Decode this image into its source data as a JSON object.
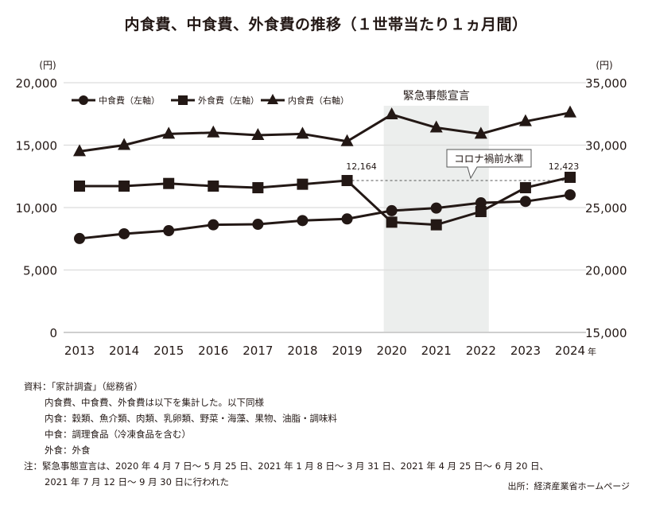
{
  "title": "内食費、中食費、外食費の推移（１世帯当たり１ヵ月間）",
  "chart_data": {
    "type": "line",
    "title": "内食費、中食費、外食費の推移（１世帯当たり１ヵ月間）",
    "x": [
      "2013",
      "2014",
      "2015",
      "2016",
      "2017",
      "2018",
      "2019",
      "2020",
      "2021",
      "2022",
      "2023",
      "2024"
    ],
    "x_suffix": "年",
    "left_axis": {
      "unit": "(円)",
      "ylim": [
        0,
        20000
      ],
      "ticks": [
        "0",
        "5,000",
        "10,000",
        "15,000",
        "20,000"
      ]
    },
    "right_axis": {
      "unit": "(円)",
      "ylim": [
        15000,
        35000
      ],
      "ticks": [
        "15,000",
        "20,000",
        "25,000",
        "30,000",
        "35,000"
      ]
    },
    "grid": true,
    "legend_position": "top-left",
    "series": [
      {
        "name": "中食費（左軸）",
        "marker": "circle",
        "axis": "left",
        "values": [
          7520,
          7900,
          8150,
          8620,
          8660,
          8960,
          9090,
          9750,
          9960,
          10380,
          10490,
          11020
        ]
      },
      {
        "name": "外食費（左軸）",
        "marker": "square",
        "axis": "left",
        "values": [
          11720,
          11720,
          11930,
          11720,
          11590,
          11870,
          12164,
          8830,
          8620,
          9680,
          11590,
          12423
        ]
      },
      {
        "name": "内食費（右軸）",
        "marker": "triangle",
        "axis": "right",
        "values": [
          29500,
          30000,
          30900,
          31000,
          30800,
          30900,
          30300,
          32450,
          31400,
          30900,
          31900,
          32600
        ]
      }
    ],
    "annotations": {
      "shaded_label": "緊急事態宣言",
      "shaded_range": [
        "2020",
        "2022"
      ],
      "callout": "コロナ禍前水準",
      "reference_value": 12164,
      "label_2019": "12,164",
      "label_2024": "12,423"
    }
  },
  "notes": {
    "source_line": "資料：「家計調査」（総務省）",
    "line1": "内食費、中食費、外食費は以下を集計した。以下同様",
    "line2": "内食：穀類、魚介類、肉類、乳卵類、野菜・海藻、果物、油脂・調味料",
    "line3": "中食：調理食品（冷凍食品を含む）",
    "line4": "外食：外食",
    "note1": "注：緊急事態宣言は、2020 年 4 月 7 日～ 5 月 25 日、2021 年 1 月 8 日～ 3 月 31 日、2021 年 4 月 25 日～ 6 月 20 日、",
    "note2": "2021 年 7 月 12 日～ 9 月 30 日に行われた"
  },
  "credit": "出所：経済産業省ホームページ"
}
